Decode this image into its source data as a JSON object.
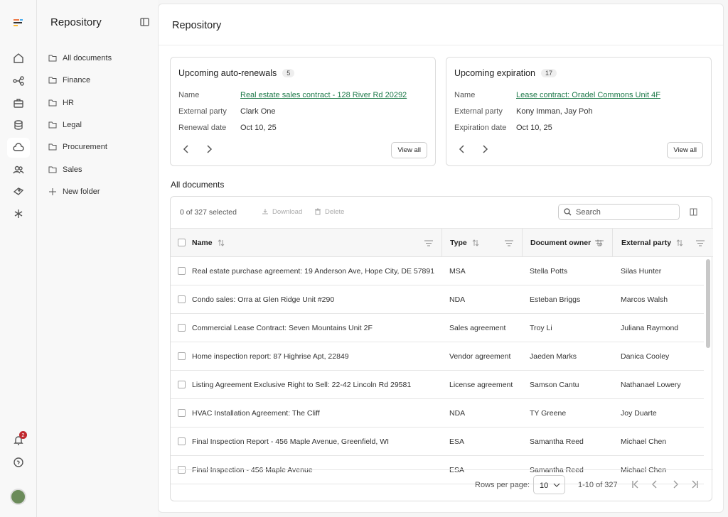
{
  "notification_count": "2",
  "panel": {
    "title": "Repository",
    "folders": [
      "All documents",
      "Finance",
      "HR",
      "Legal",
      "Procurement",
      "Sales"
    ],
    "new_folder": "New folder"
  },
  "main": {
    "title": "Repository",
    "cards": [
      {
        "title": "Upcoming auto-renewals",
        "count": "5",
        "fields": [
          {
            "label": "Name",
            "value": "Real estate sales contract - 128 River Rd 20292"
          },
          {
            "label": "External party",
            "value": "Clark One"
          },
          {
            "label": "Renewal date",
            "value": "Oct 10, 25"
          }
        ],
        "button": "View all"
      },
      {
        "title": "Upcoming expiration",
        "count": "17",
        "fields": [
          {
            "label": "Name",
            "value": "Lease contract: Oradel Commons Unit 4F"
          },
          {
            "label": "External party",
            "value": "Kony Imman, Jay Poh"
          },
          {
            "label": "Expiration date",
            "value": "Oct 10, 25"
          }
        ],
        "button": "View all"
      }
    ],
    "section_title": "All documents",
    "toolbar": {
      "selected": "0 of 327 selected",
      "download": "Download",
      "delete": "Delete",
      "search": "Search"
    },
    "table": {
      "columns": [
        "Name",
        "Type",
        "Document owner",
        "External party"
      ],
      "rows": [
        [
          "Real estate purchase agreement: 19 Anderson Ave, Hope City, DE 57891",
          "MSA",
          "Stella Potts",
          "Silas Hunter"
        ],
        [
          "Condo sales: Orra at Glen Ridge Unit #290",
          "NDA",
          "Esteban Briggs",
          "Marcos Walsh"
        ],
        [
          "Commercial Lease Contract: Seven Mountains Unit 2F",
          "Sales agreement",
          "Troy Li",
          "Juliana Raymond"
        ],
        [
          "Home inspection report: 87 Highrise Apt, 22849",
          "Vendor agreement",
          "Jaeden Marks",
          "Danica Cooley"
        ],
        [
          "Listing Agreement Exclusive Right to Sell: 22-42 Lincoln Rd 29581",
          "License agreement",
          "Samson Cantu",
          "Nathanael Lowery"
        ],
        [
          "HVAC Installation Agreement: The Cliff",
          "NDA",
          "TY Greene",
          "Joy Duarte"
        ],
        [
          "Final Inspection Report - 456 Maple Avenue, Greenfield, WI",
          "ESA",
          "Samantha Reed",
          "Michael Chen"
        ],
        [
          "Final Inspection - 456 Maple Avenue",
          "ESA",
          "Samantha Reed",
          "Michael Chen"
        ]
      ]
    },
    "footer": {
      "rows_per_page_label": "Rows per page:",
      "rows_per_page": "10",
      "range": "1-10 of 327"
    }
  }
}
